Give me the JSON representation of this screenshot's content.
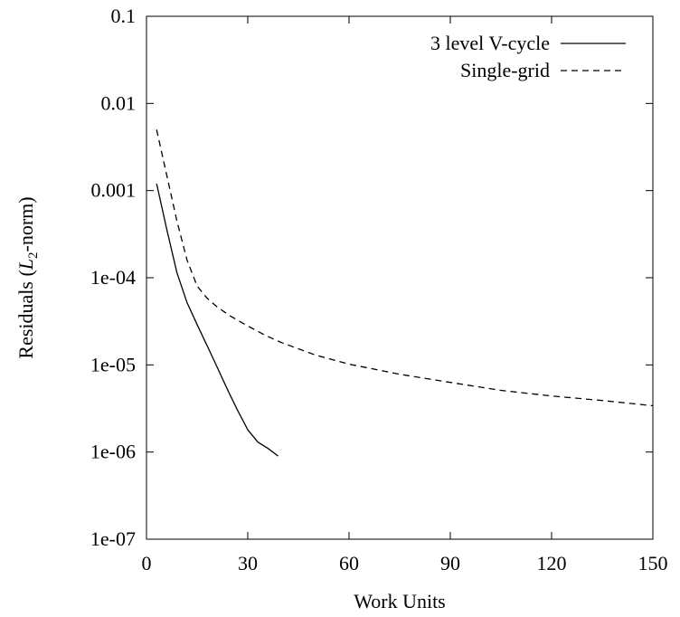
{
  "chart_data": {
    "type": "line",
    "title": "",
    "xlabel": "Work Units",
    "ylabel": {
      "prefix": "Residuals (",
      "var": "L",
      "sub": "2",
      "suffix": "-norm)"
    },
    "x_scale": "linear",
    "y_scale": "log",
    "xlim": [
      0,
      150
    ],
    "ylim": [
      1e-07,
      0.1
    ],
    "x_ticks": [
      0,
      30,
      60,
      90,
      120,
      150
    ],
    "x_tick_labels": [
      "0",
      "30",
      "60",
      "90",
      "120",
      "150"
    ],
    "y_ticks": [
      1e-07,
      1e-06,
      1e-05,
      0.0001,
      0.001,
      0.01,
      0.1
    ],
    "y_tick_labels": [
      "1e-07",
      "1e-06",
      "1e-05",
      "1e-04",
      "0.001",
      "0.01",
      "0.1"
    ],
    "grid": false,
    "legend_position": "top-right",
    "series": [
      {
        "name": "3 level V-cycle",
        "style": "solid",
        "color": "#000000",
        "x": [
          3,
          6,
          9,
          12,
          15,
          18,
          21,
          24,
          27,
          30,
          33,
          36,
          39
        ],
        "y": [
          0.0012,
          0.00036,
          0.000115,
          5.2e-05,
          2.9e-05,
          1.65e-05,
          9.3e-06,
          5.2e-06,
          3e-06,
          1.8e-06,
          1.3e-06,
          1.1e-06,
          9e-07
        ]
      },
      {
        "name": "Single-grid",
        "style": "dashed",
        "color": "#000000",
        "x": [
          3,
          6,
          9,
          12,
          15,
          18,
          21,
          25,
          30,
          35,
          40,
          50,
          60,
          75,
          90,
          105,
          120,
          135,
          150
        ],
        "y": [
          0.005,
          0.0015,
          0.00045,
          0.00016,
          8e-05,
          5.8e-05,
          4.6e-05,
          3.6e-05,
          2.8e-05,
          2.2e-05,
          1.8e-05,
          1.3e-05,
          1.02e-05,
          7.8e-06,
          6.3e-06,
          5.1e-06,
          4.4e-06,
          3.9e-06,
          3.4e-06
        ]
      }
    ]
  }
}
